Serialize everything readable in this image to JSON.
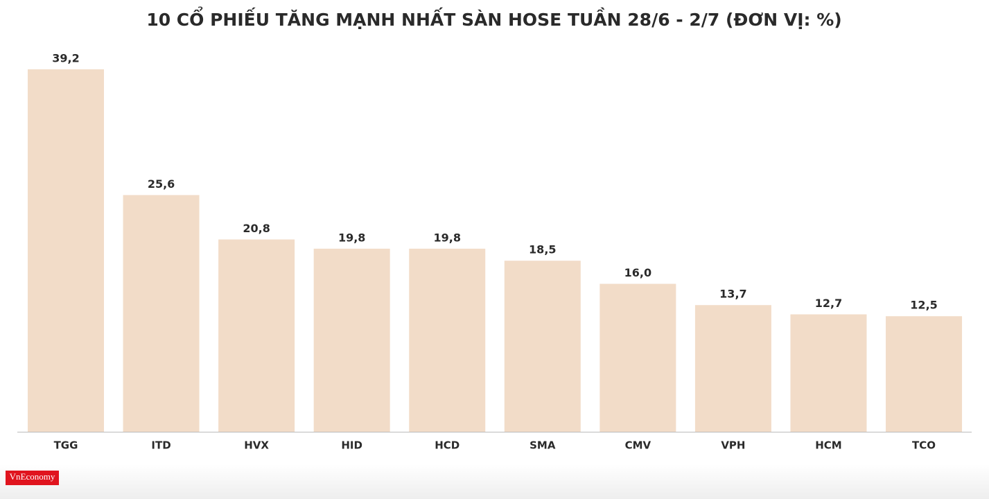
{
  "chart_data": {
    "type": "bar",
    "title": "10 CỔ PHIẾU TĂNG MẠNH NHẤT SÀN HOSE TUẦN 28/6 - 2/7 (ĐƠN VỊ: %)",
    "categories": [
      "TGG",
      "ITD",
      "HVX",
      "HID",
      "HCD",
      "SMA",
      "CMV",
      "VPH",
      "HCM",
      "TCO"
    ],
    "values": [
      39.2,
      25.6,
      20.8,
      19.8,
      19.8,
      18.5,
      16.0,
      13.7,
      12.7,
      12.5
    ],
    "value_labels": [
      "39,2",
      "25,6",
      "20,8",
      "19,8",
      "19,8",
      "18,5",
      "16,0",
      "13,7",
      "12,7",
      "12,5"
    ],
    "color": "#f2dcc8"
  },
  "brand": "VnEconomy"
}
